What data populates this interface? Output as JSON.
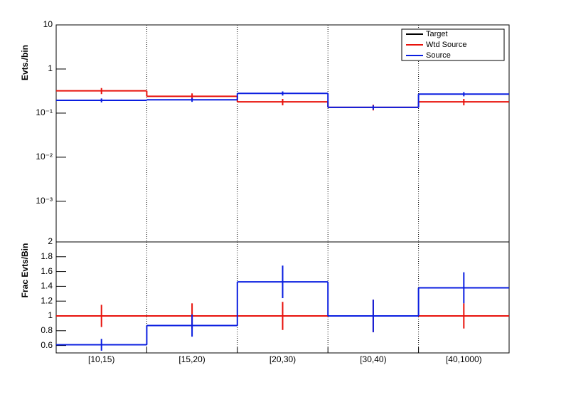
{
  "chart_data": [
    {
      "type": "step",
      "ylabel": "Evts./bin",
      "log_y": true,
      "ylim": [
        0.00012,
        10
      ],
      "yticks": [
        10,
        1,
        {
          "value": 0.1,
          "label": "10⁻¹"
        },
        {
          "value": 0.01,
          "label": "10⁻²"
        },
        {
          "value": 0.001,
          "label": "10⁻³"
        }
      ],
      "legend": "top-right",
      "series": [
        {
          "name": "Target",
          "color": "#000000",
          "values": [
            null,
            null,
            null,
            null,
            null
          ],
          "errors": [
            null,
            null,
            null,
            null,
            null
          ]
        },
        {
          "name": "Wtd Source",
          "color": "#e8120c",
          "values": [
            0.32,
            0.24,
            0.18,
            0.135,
            0.18
          ],
          "errors": [
            0.05,
            0.04,
            0.03,
            0.02,
            0.03
          ]
        },
        {
          "name": "Source",
          "color": "#0a1ee0",
          "values": [
            0.195,
            0.2,
            0.28,
            0.135,
            0.27
          ],
          "errors": [
            0.02,
            0.02,
            0.03,
            0.015,
            0.03
          ]
        }
      ]
    },
    {
      "type": "step",
      "ylabel": "Frac Evts/Bin",
      "log_y": false,
      "categories": [
        "[10,15)",
        "[15,20)",
        "[20,30)",
        "[30,40)",
        "[40,1000)"
      ],
      "ylim": [
        0.5,
        2.0
      ],
      "yticks": [
        0.6,
        0.8,
        1,
        1.2,
        1.4,
        1.6,
        1.8,
        2
      ],
      "series": [
        {
          "color": "#e8120c",
          "values": [
            1,
            1,
            1,
            1,
            1
          ],
          "errors": [
            0.15,
            0.17,
            0.19,
            0.22,
            0.17
          ]
        },
        {
          "color": "#0a1ee0",
          "values": [
            0.61,
            0.87,
            1.46,
            1.0,
            1.38
          ],
          "errors": [
            0.08,
            0.15,
            0.22,
            0.22,
            0.21
          ]
        }
      ]
    }
  ]
}
